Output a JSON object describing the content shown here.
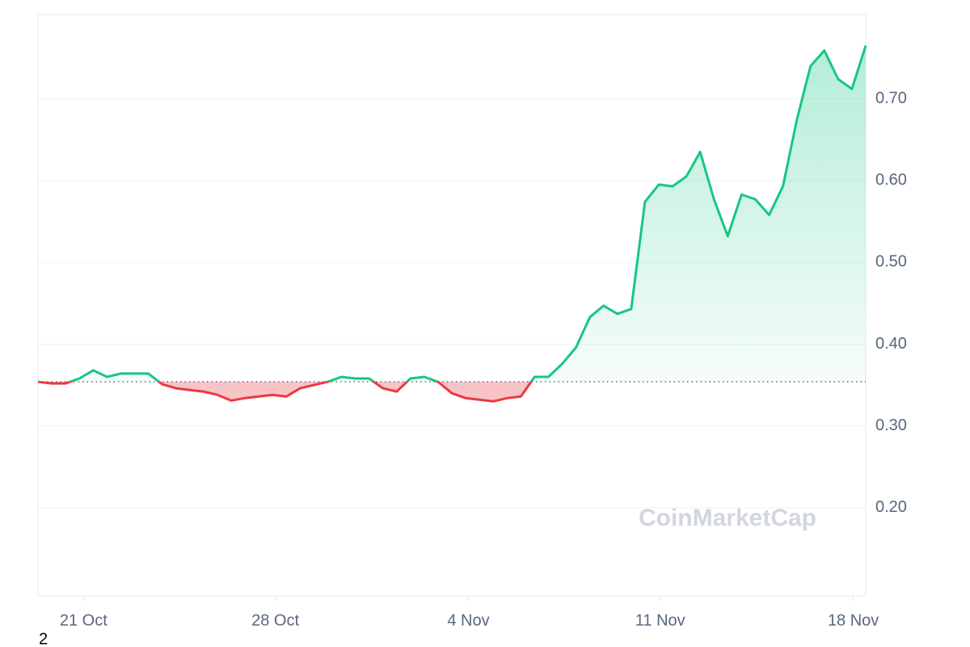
{
  "chart_data": {
    "type": "line",
    "watermark": "CoinMarketCap",
    "footnote": "2",
    "values": [
      0.354,
      0.352,
      0.352,
      0.358,
      0.368,
      0.36,
      0.364,
      0.364,
      0.364,
      0.351,
      0.346,
      0.344,
      0.342,
      0.338,
      0.331,
      0.334,
      0.336,
      0.338,
      0.336,
      0.346,
      0.35,
      0.354,
      0.36,
      0.358,
      0.358,
      0.346,
      0.342,
      0.358,
      0.36,
      0.354,
      0.34,
      0.334,
      0.332,
      0.33,
      0.334,
      0.336,
      0.36,
      0.36,
      0.376,
      0.396,
      0.433,
      0.447,
      0.437,
      0.443,
      0.574,
      0.595,
      0.593,
      0.605,
      0.635,
      0.577,
      0.532,
      0.583,
      0.577,
      0.558,
      0.593,
      0.674,
      0.74,
      0.759,
      0.724,
      0.712,
      0.765
    ],
    "baseline": 0.354,
    "up_color": "#16c784",
    "down_color": "#ea3943",
    "xlim": [
      0,
      60
    ],
    "xticks": [
      {
        "value": 3.3,
        "label": "21 Oct"
      },
      {
        "value": 17.2,
        "label": "28 Oct"
      },
      {
        "value": 31.2,
        "label": "4 Nov"
      },
      {
        "value": 45.1,
        "label": "11 Nov"
      },
      {
        "value": 59.1,
        "label": "18 Nov"
      }
    ],
    "ylim": [
      0.092,
      0.803
    ],
    "yticks": [
      {
        "value": 0.2,
        "label": "0.20"
      },
      {
        "value": 0.3,
        "label": "0.30"
      },
      {
        "value": 0.4,
        "label": "0.40"
      },
      {
        "value": 0.5,
        "label": "0.50"
      },
      {
        "value": 0.6,
        "label": "0.60"
      },
      {
        "value": 0.7,
        "label": "0.70"
      }
    ],
    "grid": true
  }
}
